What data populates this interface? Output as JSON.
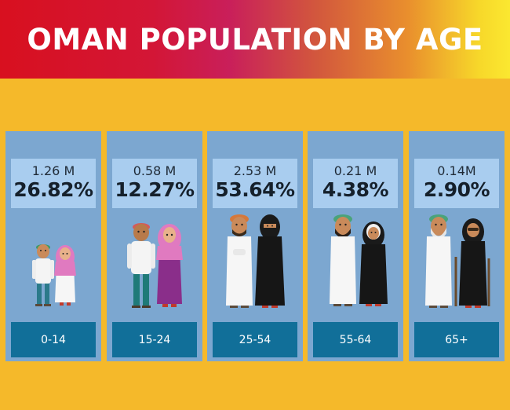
{
  "title": "OMAN POPULATION BY AGE",
  "colors": {
    "background": "#f5b92a",
    "panel": "#7ca7d0",
    "stat_box": "#a9cdef",
    "age_box": "#116f99",
    "header_gradient": [
      "#d8101f",
      "#c91f5a",
      "#e98f2d",
      "#fbe830"
    ]
  },
  "groups": [
    {
      "population": "1.26 M",
      "percent": "26.82%",
      "age_range": "0-14",
      "illustration": "children-icon"
    },
    {
      "population": "0.58 M",
      "percent": "12.27%",
      "age_range": "15-24",
      "illustration": "youth-icon"
    },
    {
      "population": "2.53 M",
      "percent": "53.64%",
      "age_range": "25-54",
      "illustration": "adults-icon"
    },
    {
      "population": "0.21 M",
      "percent": "4.38%",
      "age_range": "55-64",
      "illustration": "middle-aged-icon"
    },
    {
      "population": "0.14M",
      "percent": "2.90%",
      "age_range": "65+",
      "illustration": "elderly-icon"
    }
  ]
}
